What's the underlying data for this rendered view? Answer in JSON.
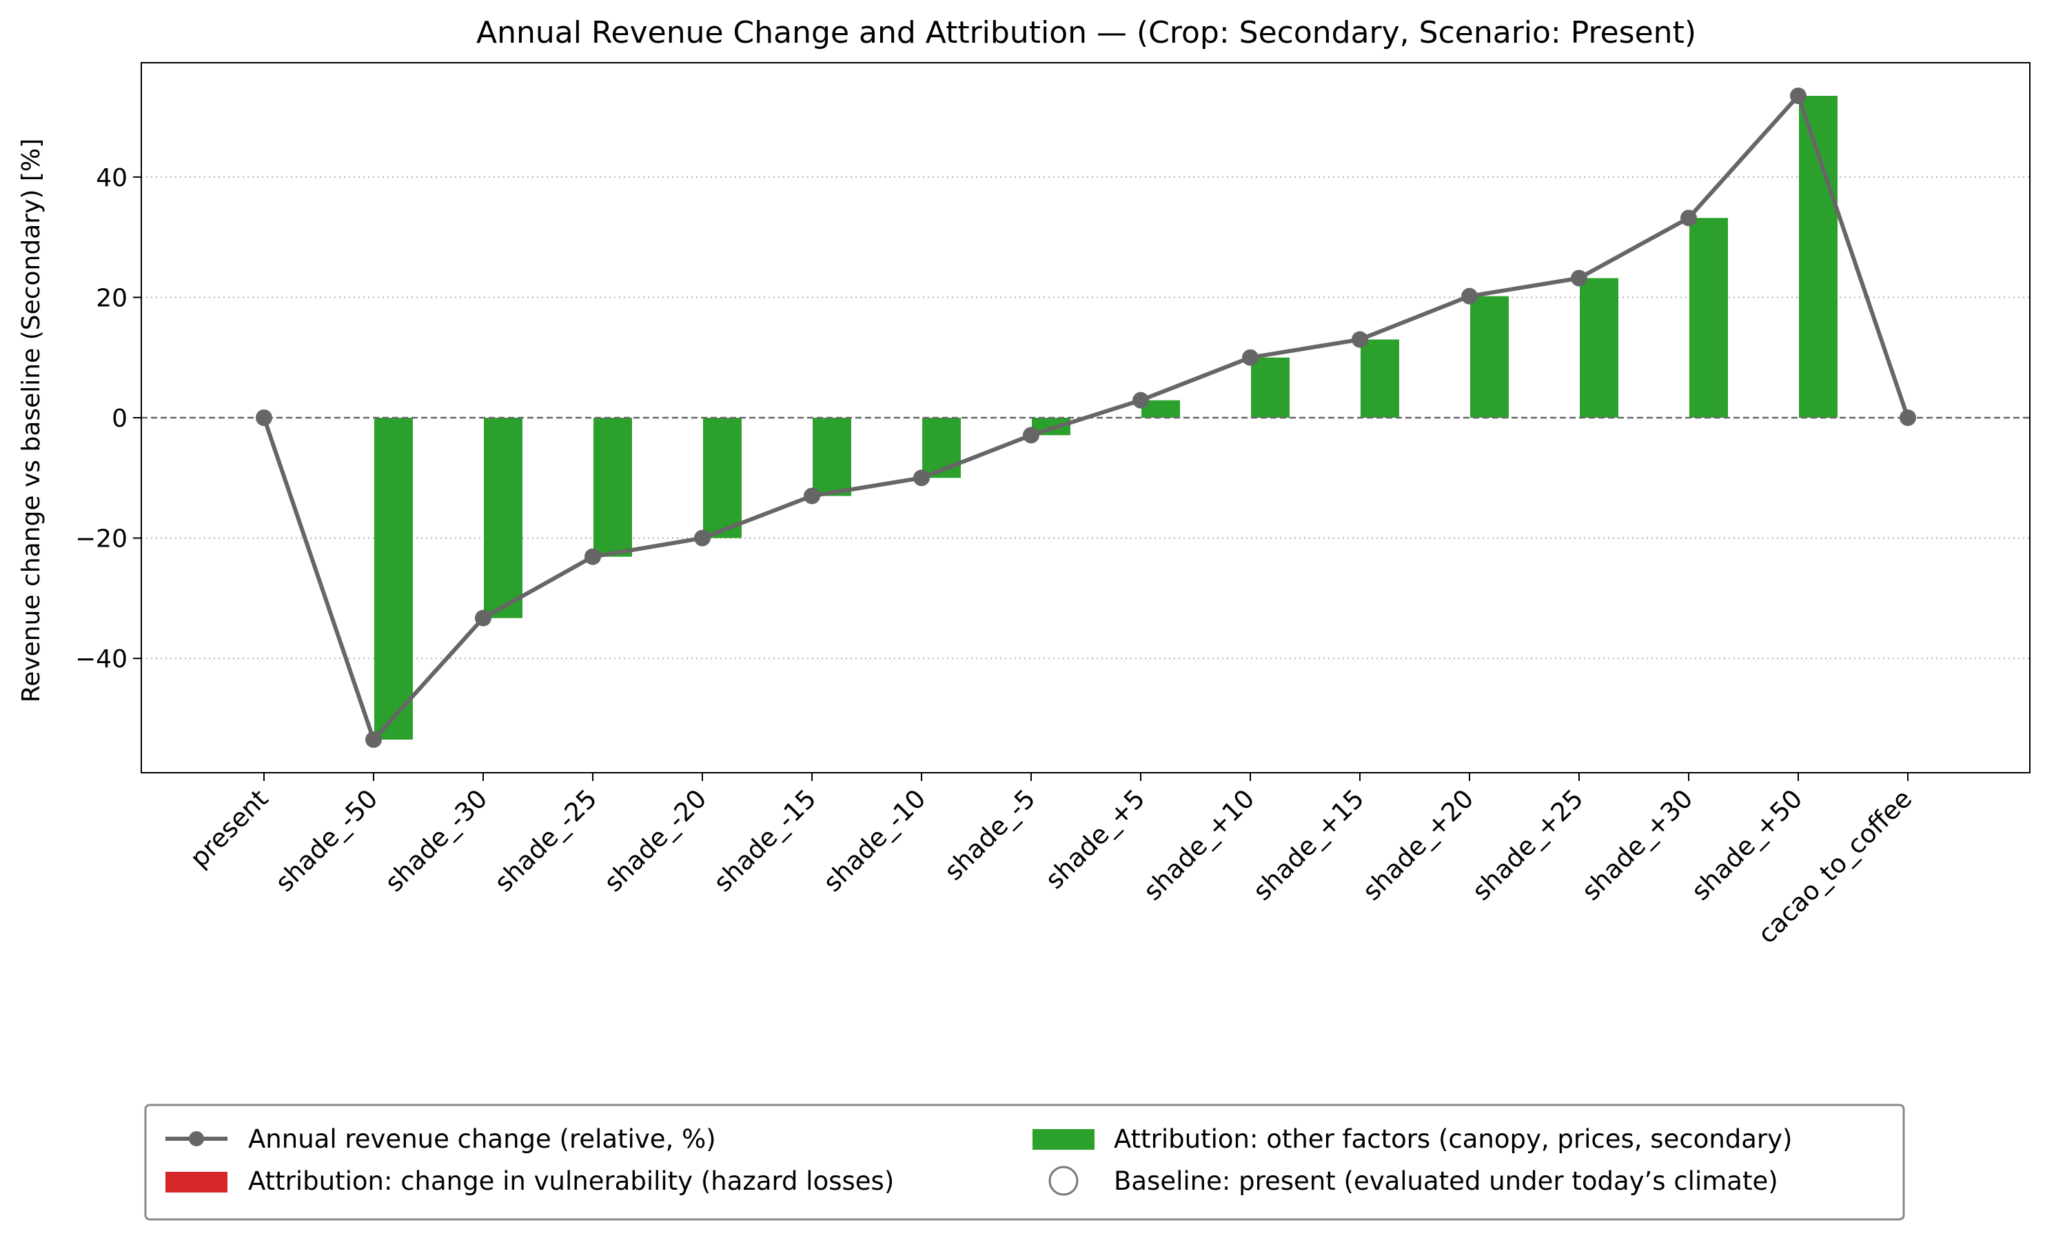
{
  "chart_data": {
    "type": "bar",
    "title": "Annual Revenue Change and Attribution — (Crop: Secondary, Scenario: Present)",
    "xlabel": "",
    "ylabel": "Revenue change vs baseline (Secondary) [%]",
    "ylim": [
      -59,
      59
    ],
    "yticks": [
      40,
      20,
      0,
      -20,
      -40
    ],
    "ytick_labels": [
      "40",
      "20",
      "0",
      "−20",
      "−40"
    ],
    "grid": "horizontal dotted",
    "legend_position": "bottom",
    "categories": [
      "present",
      "shade_-50",
      "shade_-30",
      "shade_-25",
      "shade_-20",
      "shade_-15",
      "shade_-10",
      "shade_-5",
      "shade_+5",
      "shade_+10",
      "shade_+15",
      "shade_+20",
      "shade_+25",
      "shade_+30",
      "shade_+50",
      "cacao_to_coffee"
    ],
    "series": [
      {
        "name": "Annual revenue change (relative, %)",
        "kind": "line",
        "color": "#666666",
        "values": [
          0,
          -53.5,
          -33.3,
          -23.1,
          -20.0,
          -13.0,
          -10.0,
          -2.9,
          2.9,
          10.0,
          13.0,
          20.2,
          23.2,
          33.2,
          53.5,
          0
        ]
      },
      {
        "name": "Attribution: change in vulnerability (hazard losses)",
        "kind": "bar",
        "color": "#d62728",
        "values": [
          0,
          0,
          0,
          0,
          0,
          0,
          0,
          0,
          0,
          0,
          0,
          0,
          0,
          0,
          0,
          0
        ]
      },
      {
        "name": "Attribution: other factors (canopy, prices, secondary)",
        "kind": "bar",
        "color": "#2ca02c",
        "values": [
          0,
          -53.5,
          -33.3,
          -23.1,
          -20.0,
          -13.0,
          -10.0,
          -2.9,
          2.9,
          10.0,
          13.0,
          20.2,
          23.2,
          33.2,
          53.5,
          0
        ]
      }
    ],
    "baseline_marker": {
      "name": "Baseline: present (evaluated under today’s climate)"
    }
  }
}
